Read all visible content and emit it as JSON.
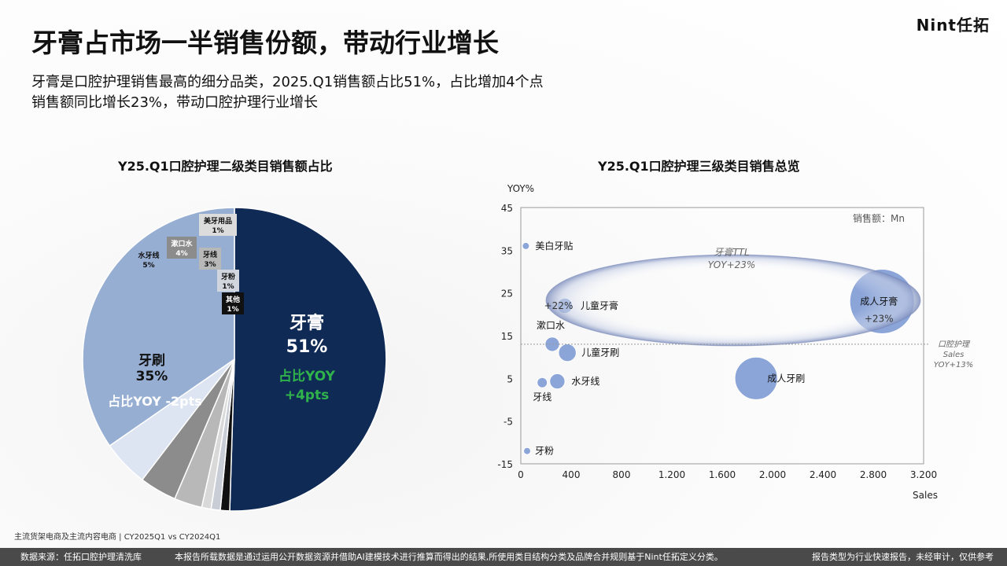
{
  "brand": "Nint任拓",
  "title": "牙膏占市场一半销售份额，带动行业增长",
  "subtitle_lines": [
    "牙膏是口腔护理销售最高的细分品类，2025.Q1销售额占比51%，占比增加4个点",
    "销售额同比增长23%，带动口腔护理行业增长"
  ],
  "source_note": "主流货架电商及主流内容电商 | CY2025Q1 vs CY2024Q1",
  "footer": {
    "left": "数据来源：任拓口腔护理清洗库",
    "middle": "本报告所载数据是通过运用公开数据资源并借助AI建模技术进行推算而得出的结果,所使用类目结构分类及品牌合并规则基于Nint任拓定义分类。",
    "right": "报告类型为行业快速报告，未经审计，仅供参考"
  },
  "chart_data": [
    {
      "type": "pie",
      "title": "Y25.Q1口腔护理二级类目销售额占比",
      "slices": [
        {
          "name": "牙膏",
          "value": 51,
          "label": "51%",
          "note": "占比YOY",
          "note2": "+4pts",
          "color": "#0f2a55"
        },
        {
          "name": "其他",
          "value": 1,
          "label": "1%",
          "color": "#111111"
        },
        {
          "name": "牙粉",
          "value": 1,
          "label": "1%",
          "color": "#c9ced6"
        },
        {
          "name": "美牙用品",
          "value": 1,
          "label": "1%",
          "color": "#d9d9d9"
        },
        {
          "name": "牙线",
          "value": 3,
          "label": "3%",
          "color": "#b8b8b8"
        },
        {
          "name": "漱口水",
          "value": 4,
          "label": "4%",
          "color": "#8c8c8c"
        },
        {
          "name": "水牙线",
          "value": 5,
          "label": "5%",
          "color": "#dde5f3"
        },
        {
          "name": "牙刷",
          "value": 35,
          "label": "35%",
          "note": "占比YOY -2pts",
          "color": "#97aed3"
        }
      ]
    },
    {
      "type": "scatter",
      "title": "Y25.Q1口腔护理三级类目销售总览",
      "xlabel": "Sales",
      "ylabel": "YOY%",
      "size_label": "销售额：Mn",
      "xlim": [
        0,
        3200
      ],
      "ylim": [
        -15,
        45
      ],
      "xticks": [
        0,
        400,
        800,
        1200,
        1600,
        2000,
        2400,
        2800,
        3200
      ],
      "xtick_labels": [
        "0",
        "400",
        "800",
        "1.200",
        "1.600",
        "2.000",
        "2.400",
        "2.800",
        "3.200"
      ],
      "yticks": [
        -15,
        -5,
        5,
        15,
        25,
        35,
        45
      ],
      "grid": false,
      "points": [
        {
          "name": "美白牙贴",
          "x": 40,
          "y": 36,
          "size": 5
        },
        {
          "name": "儿童牙膏",
          "x": 350,
          "y": 22,
          "size": 90,
          "note": "+22%"
        },
        {
          "name": "成人牙膏",
          "x": 2870,
          "y": 23,
          "size": 1600,
          "note": "+23%"
        },
        {
          "name": "漱口水",
          "x": 250,
          "y": 13,
          "size": 80
        },
        {
          "name": "儿童牙刷",
          "x": 370,
          "y": 11,
          "size": 120
        },
        {
          "name": "成人牙刷",
          "x": 1870,
          "y": 5,
          "size": 700
        },
        {
          "name": "牙线",
          "x": 170,
          "y": 4,
          "size": 40
        },
        {
          "name": "水牙线",
          "x": 290,
          "y": 4.3,
          "size": 90
        },
        {
          "name": "牙粉",
          "x": 50,
          "y": -12,
          "size": 5
        }
      ],
      "reference_line": {
        "y": 13,
        "label_lines": [
          "口腔护理",
          "Sales",
          "YOY+13%"
        ]
      },
      "highlight": {
        "label_lines": [
          "牙膏TTL",
          "YOY+23%"
        ]
      }
    }
  ]
}
